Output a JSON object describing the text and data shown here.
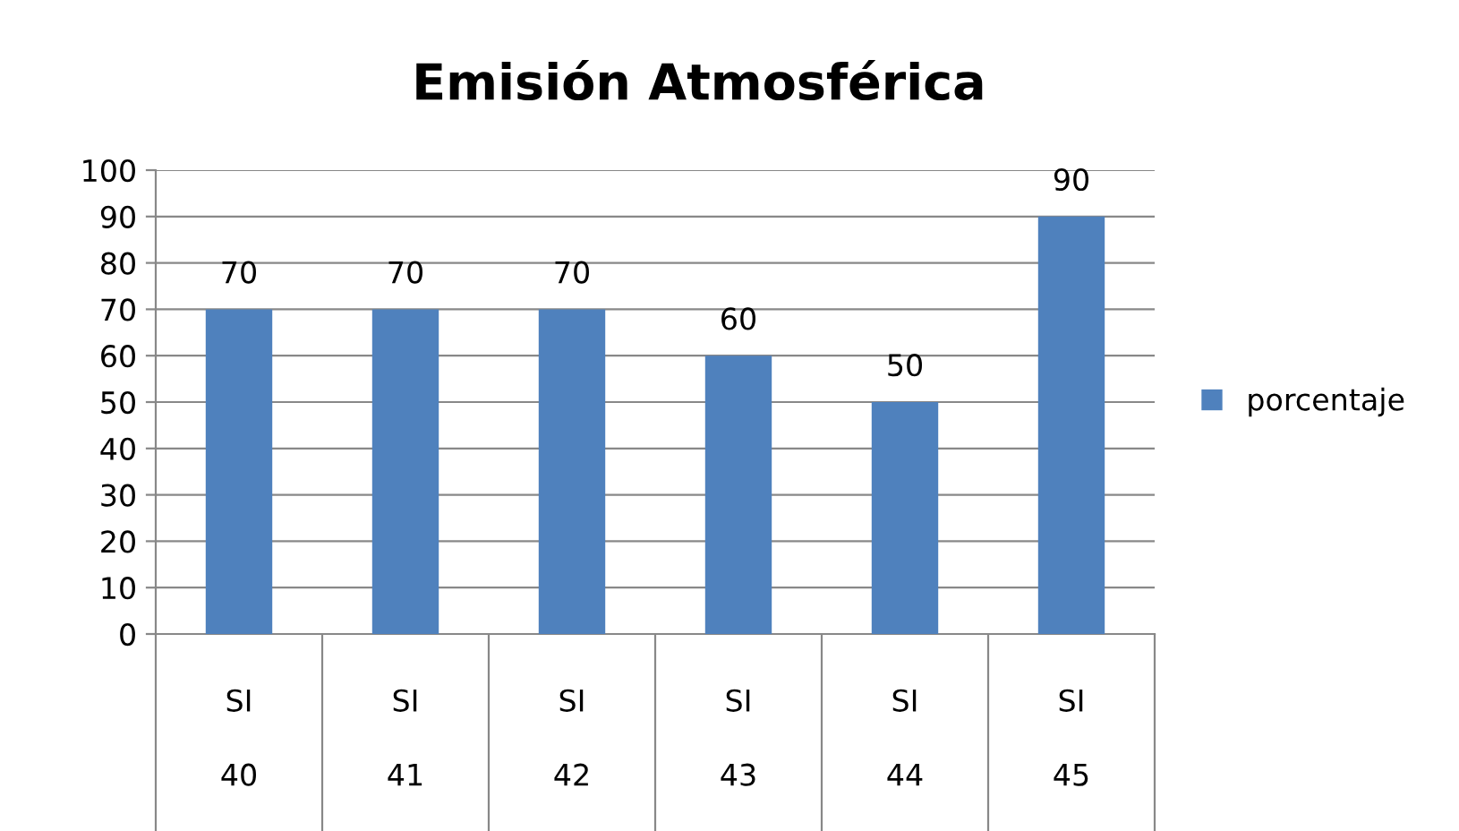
{
  "chart_data": {
    "type": "bar",
    "title": "Emisión Atmosférica",
    "categories": [
      "SI\n40",
      "SI\n41",
      "SI\n42",
      "SI\n43",
      "SI\n44",
      "SI\n45"
    ],
    "series": [
      {
        "name": "porcentaje",
        "color": "#4f81bd",
        "values": [
          70,
          70,
          70,
          60,
          50,
          90
        ]
      }
    ],
    "ylim": [
      0,
      100
    ],
    "yticks": [
      0,
      10,
      20,
      30,
      40,
      50,
      60,
      70,
      80,
      90,
      100
    ],
    "grid": "y",
    "legend": "right",
    "data_labels": true
  }
}
